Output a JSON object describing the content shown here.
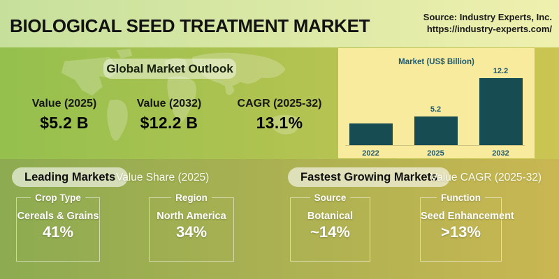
{
  "header": {
    "title": "BIOLOGICAL SEED TREATMENT MARKET",
    "source_line1": "Source: Industry Experts, Inc.",
    "source_line2": "https://industry-experts.com/"
  },
  "outlook": {
    "heading": "Global Market Outlook",
    "stats": [
      {
        "label": "Value (2025)",
        "value": "$5.2 B"
      },
      {
        "label": "Value (2032)",
        "value": "$12.2 B"
      },
      {
        "label": "CAGR (2025-32)",
        "value": "13.1%"
      }
    ]
  },
  "chart_data": {
    "type": "bar",
    "title": "Market (US$ Billion)",
    "categories": [
      "2022",
      "2025",
      "2032"
    ],
    "values": [
      3.9,
      5.2,
      12.2
    ],
    "value_labels": [
      "",
      "5.2",
      "12.2"
    ],
    "ylim": [
      0,
      12.2
    ],
    "grid": false,
    "legend": "none",
    "note": "2022 bar is unlabeled in the source image; 3.9 estimated from bar height"
  },
  "leading_markets": {
    "heading": "Leading Markets",
    "subheading": "Value Share (2025)",
    "cards": [
      {
        "category": "Crop Type",
        "name": "Cereals & Grains",
        "value": "41%"
      },
      {
        "category": "Region",
        "name": "North America",
        "value": "34%"
      }
    ]
  },
  "fastest_growing": {
    "heading": "Fastest Growing Markets",
    "subheading": "Value CAGR (2025-32)",
    "cards": [
      {
        "category": "Source",
        "name": "Botanical",
        "value": "~14%"
      },
      {
        "category": "Function",
        "name": "Seed Enhancement",
        "value": ">13%"
      }
    ]
  },
  "colors": {
    "header_bg_left": "#c6e09c",
    "header_bg_right": "#eff0ae",
    "outlook_bg_left": "#95c04e",
    "outlook_bg_right": "#cbc553",
    "bottom_bg_left": "#8dab51",
    "bottom_bg_right": "#c9b752",
    "chart_panel_bg": "#f9eb9d",
    "bar_color": "#174c52",
    "chart_text": "#1c5a74",
    "title_text": "#121212"
  }
}
